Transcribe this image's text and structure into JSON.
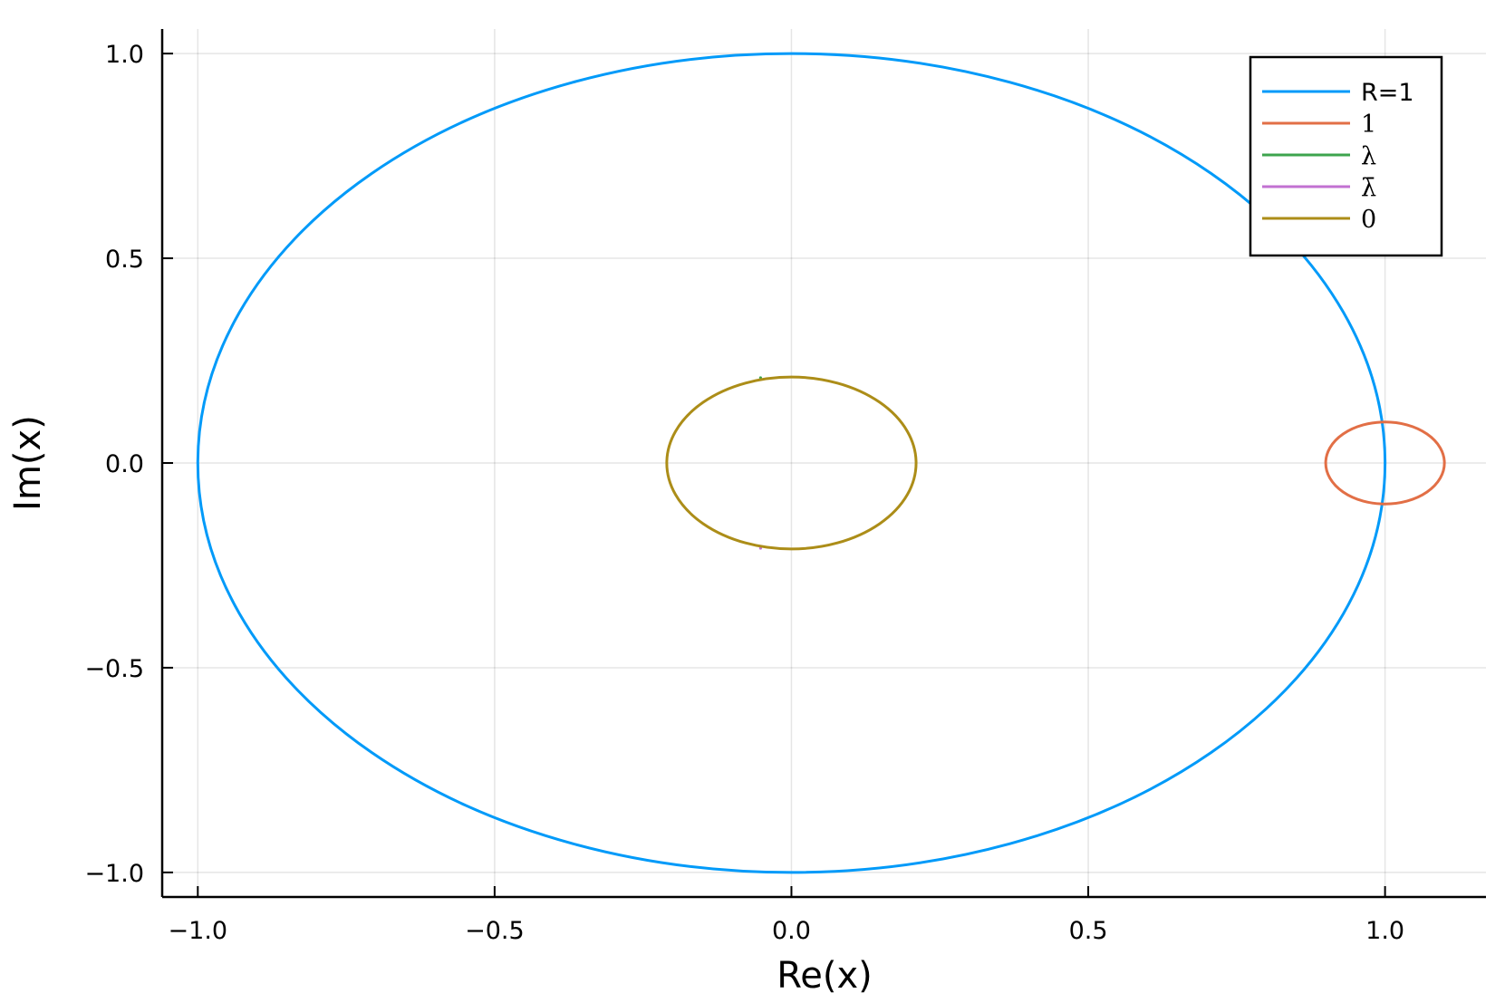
{
  "chart_data": {
    "type": "line",
    "xlabel": "Re(x)",
    "ylabel": "Im(x)",
    "xlim": [
      -1.06,
      1.17
    ],
    "ylim": [
      -1.06,
      1.06
    ],
    "grid": true,
    "legend_position": "top-right",
    "x_ticks": [
      {
        "value": -1.0,
        "label": "−1.0"
      },
      {
        "value": -0.5,
        "label": "−0.5"
      },
      {
        "value": 0.0,
        "label": "0.0"
      },
      {
        "value": 0.5,
        "label": "0.5"
      },
      {
        "value": 1.0,
        "label": "1.0"
      }
    ],
    "y_ticks": [
      {
        "value": -1.0,
        "label": "−1.0"
      },
      {
        "value": -0.5,
        "label": "−0.5"
      },
      {
        "value": 0.0,
        "label": "0.0"
      },
      {
        "value": 0.5,
        "label": "0.5"
      },
      {
        "value": 1.0,
        "label": "1.0"
      }
    ],
    "series": [
      {
        "name": "R=1",
        "shape": "circle",
        "center": [
          0.0,
          0.0
        ],
        "radius_x": 1.0,
        "radius_y": 1.0,
        "color": "#009af9",
        "math": false
      },
      {
        "name": "1",
        "shape": "circle",
        "center": [
          1.0,
          0.0
        ],
        "radius_x": 0.1,
        "radius_y": 0.1,
        "color": "#e26f46",
        "math": true
      },
      {
        "name": "λ",
        "shape": "point",
        "center": [
          -0.052,
          0.208
        ],
        "radius_x": 0.0,
        "radius_y": 0.0,
        "color": "#3da44d",
        "math": true
      },
      {
        "name": "λ̄",
        "shape": "point",
        "center": [
          -0.052,
          -0.208
        ],
        "radius_x": 0.0,
        "radius_y": 0.0,
        "color": "#c271d2",
        "math": true
      },
      {
        "name": "0",
        "shape": "circle",
        "center": [
          0.0,
          0.0
        ],
        "radius_x": 0.21,
        "radius_y": 0.21,
        "color": "#ac8d18",
        "math": true
      }
    ]
  }
}
